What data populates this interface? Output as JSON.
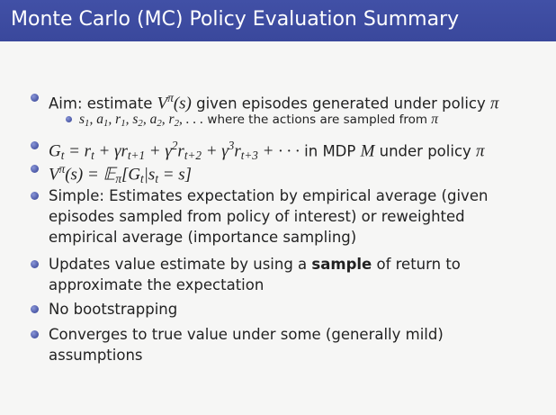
{
  "header": {
    "title": "Monte Carlo (MC) Policy Evaluation Summary"
  },
  "items": [
    {
      "level": 1,
      "segments": [
        {
          "text": "Aim: estimate "
        },
        {
          "text": "V",
          "style": "math"
        },
        {
          "text": "π",
          "style": "sup"
        },
        {
          "text": "(",
          "style": "math"
        },
        {
          "text": "s",
          "style": "math"
        },
        {
          "text": ")",
          "style": "math"
        },
        {
          "text": " given episodes generated under policy "
        },
        {
          "text": "π",
          "style": "math"
        }
      ]
    },
    {
      "level": 2,
      "segments": [
        {
          "text": "s",
          "style": "math"
        },
        {
          "text": "1",
          "style": "sub"
        },
        {
          "text": ", ",
          "style": "math"
        },
        {
          "text": "a",
          "style": "math"
        },
        {
          "text": "1",
          "style": "sub"
        },
        {
          "text": ", ",
          "style": "math"
        },
        {
          "text": "r",
          "style": "math"
        },
        {
          "text": "1",
          "style": "sub"
        },
        {
          "text": ", ",
          "style": "math"
        },
        {
          "text": "s",
          "style": "math"
        },
        {
          "text": "2",
          "style": "sub"
        },
        {
          "text": ", ",
          "style": "math"
        },
        {
          "text": "a",
          "style": "math"
        },
        {
          "text": "2",
          "style": "sub"
        },
        {
          "text": ", ",
          "style": "math"
        },
        {
          "text": "r",
          "style": "math"
        },
        {
          "text": "2",
          "style": "sub"
        },
        {
          "text": ", . . .",
          "style": "math"
        },
        {
          "text": " where the actions are sampled from "
        },
        {
          "text": "π",
          "style": "math"
        }
      ]
    },
    {
      "level": 1,
      "segments": [
        {
          "text": "G",
          "style": "math"
        },
        {
          "text": "t",
          "style": "sub"
        },
        {
          "text": " = ",
          "style": "math"
        },
        {
          "text": "r",
          "style": "math"
        },
        {
          "text": "t",
          "style": "sub"
        },
        {
          "text": " + γ",
          "style": "math"
        },
        {
          "text": "r",
          "style": "math"
        },
        {
          "text": "t+1",
          "style": "sub"
        },
        {
          "text": " + γ",
          "style": "math"
        },
        {
          "text": "2",
          "style": "sup"
        },
        {
          "text": "r",
          "style": "math"
        },
        {
          "text": "t+2",
          "style": "sub"
        },
        {
          "text": " + γ",
          "style": "math"
        },
        {
          "text": "3",
          "style": "sup"
        },
        {
          "text": "r",
          "style": "math"
        },
        {
          "text": "t+3",
          "style": "sub"
        },
        {
          "text": " + · · ·",
          "style": "math"
        },
        {
          "text": " in MDP "
        },
        {
          "text": "M",
          "style": "math"
        },
        {
          "text": " under policy "
        },
        {
          "text": "π",
          "style": "math"
        }
      ]
    },
    {
      "level": 1,
      "segments": [
        {
          "text": "V",
          "style": "math"
        },
        {
          "text": "π",
          "style": "sup"
        },
        {
          "text": "(s) = 𝔼",
          "style": "math"
        },
        {
          "text": "π",
          "style": "sub"
        },
        {
          "text": "[G",
          "style": "math"
        },
        {
          "text": "t",
          "style": "sub"
        },
        {
          "text": "|s",
          "style": "math"
        },
        {
          "text": "t",
          "style": "sub"
        },
        {
          "text": " = s]",
          "style": "math"
        }
      ]
    },
    {
      "level": 1,
      "segments": [
        {
          "text": "Simple: Estimates expectation by empirical average (given episodes sampled from policy of interest) or reweighted empirical average (importance sampling)"
        }
      ]
    },
    {
      "level": 1,
      "segments": [
        {
          "text": "Updates value estimate by using a "
        },
        {
          "text": "sample",
          "style": "bold"
        },
        {
          "text": " of return to approximate the expectation"
        }
      ]
    },
    {
      "level": 1,
      "segments": [
        {
          "text": "No bootstrapping"
        }
      ]
    },
    {
      "level": 1,
      "segments": [
        {
          "text": "Converges to true value under some (generally mild) assumptions"
        }
      ]
    }
  ]
}
